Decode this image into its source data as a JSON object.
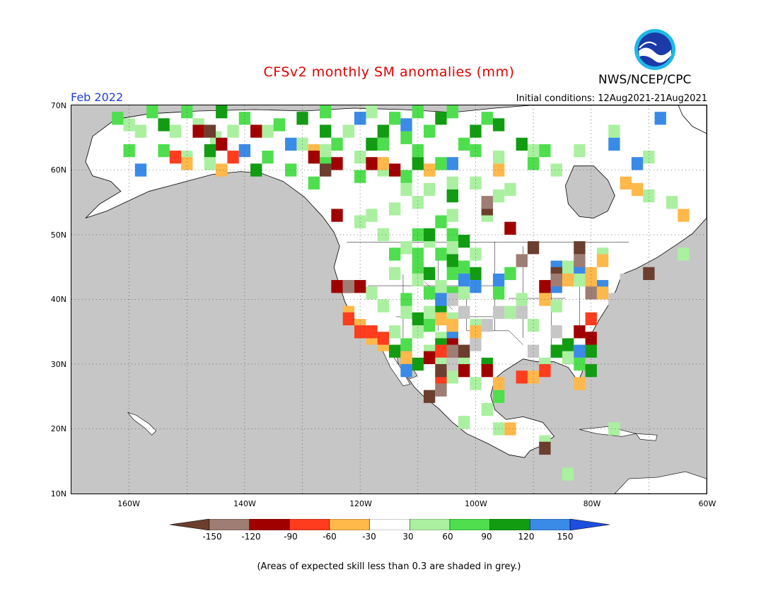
{
  "title": "CFSv2 monthly SM anomalies (mm)",
  "period": "Feb 2022",
  "initial_conditions": "Initial conditions: 12Aug2021-21Aug2021",
  "organization": "NWS/NCEP/CPC",
  "logo_text": "NOAA",
  "footnote": "(Areas of expected skill less than 0.3 are shaded in grey.)",
  "map": {
    "lon_range": [
      -170,
      -60
    ],
    "lat_range": [
      10,
      70
    ],
    "lat_ticks": [
      "70N",
      "60N",
      "50N",
      "40N",
      "30N",
      "20N",
      "10N"
    ],
    "lon_ticks": [
      "160W",
      "140W",
      "120W",
      "100W",
      "80W",
      "60W"
    ],
    "grid_dotted": true,
    "colors": {
      "ocean": "#c6c6c6",
      "low_skill": "#c6c6c6",
      "land": "#ffffff"
    }
  },
  "colorbar": {
    "labels": [
      "-150",
      "-120",
      "-90",
      "-60",
      "-30",
      "30",
      "60",
      "90",
      "120",
      "150"
    ],
    "colors": [
      "#6b3e2e",
      "#9e7d74",
      "#a00000",
      "#ff3c1e",
      "#ffb84a",
      "#ffffff",
      "#aaf0a0",
      "#4ede4e",
      "#129c12",
      "#3a8ae8",
      "#1e4ee0"
    ]
  },
  "cells": {
    "green_light": [
      [
        -160,
        67
      ],
      [
        -158,
        66
      ],
      [
        -152,
        66
      ],
      [
        -148,
        67
      ],
      [
        -145,
        65
      ],
      [
        -142,
        66
      ],
      [
        -136,
        66
      ],
      [
        -130,
        64
      ],
      [
        -126,
        63
      ],
      [
        -120,
        62
      ],
      [
        -116,
        60
      ],
      [
        -112,
        57
      ],
      [
        -108,
        57
      ],
      [
        -104,
        58
      ],
      [
        -100,
        58
      ],
      [
        -96,
        56
      ],
      [
        -110,
        55
      ],
      [
        -114,
        54
      ],
      [
        -118,
        53
      ],
      [
        -104,
        53
      ],
      [
        -98,
        53
      ],
      [
        -94,
        57
      ],
      [
        -116,
        50
      ],
      [
        -112,
        48
      ],
      [
        -108,
        49
      ],
      [
        -104,
        48
      ],
      [
        -100,
        47
      ],
      [
        -114,
        44
      ],
      [
        -110,
        43
      ],
      [
        -106,
        42
      ],
      [
        -102,
        41
      ],
      [
        -118,
        41
      ],
      [
        -116,
        39
      ],
      [
        -112,
        38
      ],
      [
        -108,
        38
      ],
      [
        -104,
        37
      ],
      [
        -100,
        36
      ],
      [
        -114,
        35
      ],
      [
        -110,
        35
      ],
      [
        -106,
        34
      ],
      [
        -102,
        31
      ],
      [
        -106,
        30
      ],
      [
        -108,
        32
      ],
      [
        -104,
        28
      ],
      [
        -100,
        27
      ],
      [
        -98,
        23
      ],
      [
        -102,
        21
      ],
      [
        -96,
        20
      ],
      [
        -92,
        40
      ],
      [
        -88,
        41
      ],
      [
        -86,
        39
      ],
      [
        -90,
        36
      ],
      [
        -94,
        38
      ],
      [
        -88,
        30
      ],
      [
        -84,
        31
      ],
      [
        -80,
        34
      ],
      [
        -82,
        43
      ],
      [
        -84,
        45
      ],
      [
        -78,
        47
      ],
      [
        -70,
        56
      ],
      [
        -66,
        55
      ],
      [
        -82,
        63
      ],
      [
        -86,
        60
      ],
      [
        -76,
        66
      ],
      [
        -70,
        62
      ],
      [
        -64,
        47
      ],
      [
        -150,
        62
      ],
      [
        -146,
        61
      ],
      [
        -120,
        52
      ],
      [
        -108,
        60
      ],
      [
        -96,
        62
      ],
      [
        -90,
        63
      ],
      [
        -122,
        66
      ],
      [
        -118,
        69
      ],
      [
        -88,
        18
      ],
      [
        -84,
        13
      ],
      [
        -76,
        20
      ]
    ],
    "green": [
      [
        -162,
        68
      ],
      [
        -156,
        69
      ],
      [
        -150,
        69
      ],
      [
        -140,
        68
      ],
      [
        -134,
        67
      ],
      [
        -126,
        69
      ],
      [
        -120,
        68
      ],
      [
        -114,
        68
      ],
      [
        -108,
        66
      ],
      [
        -102,
        64
      ],
      [
        -110,
        63
      ],
      [
        -106,
        61
      ],
      [
        -100,
        63
      ],
      [
        -126,
        61
      ],
      [
        -120,
        59
      ],
      [
        -112,
        59
      ],
      [
        -106,
        52
      ],
      [
        -110,
        50
      ],
      [
        -104,
        50
      ],
      [
        -114,
        47
      ],
      [
        -106,
        47
      ],
      [
        -110,
        45
      ],
      [
        -102,
        45
      ],
      [
        -108,
        41
      ],
      [
        -104,
        41
      ],
      [
        -112,
        40
      ],
      [
        -108,
        36
      ],
      [
        -104,
        35
      ],
      [
        -112,
        33
      ],
      [
        -108,
        31
      ],
      [
        -106,
        27
      ],
      [
        -96,
        25
      ],
      [
        -86,
        32
      ],
      [
        -82,
        30
      ],
      [
        -96,
        41
      ],
      [
        -94,
        44
      ],
      [
        -104,
        44
      ],
      [
        -110,
        47
      ],
      [
        -88,
        63
      ],
      [
        -90,
        61
      ],
      [
        -112,
        65
      ],
      [
        -116,
        64
      ],
      [
        -160,
        63
      ],
      [
        -154,
        63
      ],
      [
        -136,
        62
      ],
      [
        -132,
        60
      ],
      [
        -128,
        58
      ],
      [
        -104,
        69
      ],
      [
        -98,
        68
      ],
      [
        -124,
        64
      ],
      [
        -110,
        69
      ]
    ],
    "green_dark": [
      [
        -154,
        67
      ],
      [
        -144,
        69
      ],
      [
        -130,
        68
      ],
      [
        -116,
        66
      ],
      [
        -106,
        68
      ],
      [
        -100,
        66
      ],
      [
        -110,
        61
      ],
      [
        -104,
        56
      ],
      [
        -108,
        50
      ],
      [
        -102,
        49
      ],
      [
        -104,
        46
      ],
      [
        -108,
        44
      ],
      [
        -106,
        39
      ],
      [
        -110,
        37
      ],
      [
        -114,
        32
      ],
      [
        -106,
        33
      ],
      [
        -98,
        30
      ],
      [
        -84,
        33
      ],
      [
        -80,
        32
      ],
      [
        -96,
        67
      ],
      [
        -118,
        64
      ],
      [
        -138,
        60
      ],
      [
        -146,
        63
      ],
      [
        -126,
        66
      ],
      [
        -92,
        64
      ],
      [
        -86,
        32
      ],
      [
        -110,
        30
      ],
      [
        -100,
        44
      ],
      [
        -80,
        29
      ]
    ],
    "blue": [
      [
        -120,
        68
      ],
      [
        -112,
        67
      ],
      [
        -132,
        64
      ],
      [
        -140,
        63
      ],
      [
        -158,
        60
      ],
      [
        -104,
        61
      ],
      [
        -102,
        43
      ],
      [
        -96,
        43
      ],
      [
        -86,
        45
      ],
      [
        -82,
        45
      ],
      [
        -106,
        40
      ],
      [
        -104,
        35
      ],
      [
        -112,
        31
      ],
      [
        -82,
        32
      ],
      [
        -78,
        42
      ],
      [
        -72,
        61
      ],
      [
        -68,
        68
      ],
      [
        -76,
        64
      ],
      [
        -112,
        29
      ],
      [
        -100,
        42
      ],
      [
        -86,
        42
      ]
    ],
    "orange": [
      [
        -150,
        61
      ],
      [
        -144,
        60
      ],
      [
        -128,
        63
      ],
      [
        -116,
        61
      ],
      [
        -108,
        60
      ],
      [
        -96,
        60
      ],
      [
        -122,
        38
      ],
      [
        -120,
        36
      ],
      [
        -118,
        34
      ],
      [
        -116,
        33
      ],
      [
        -112,
        31
      ],
      [
        -106,
        37
      ],
      [
        -104,
        36
      ],
      [
        -84,
        43
      ],
      [
        -80,
        42
      ],
      [
        -78,
        41
      ],
      [
        -100,
        35
      ],
      [
        -104,
        30
      ],
      [
        -96,
        27
      ],
      [
        -82,
        27
      ],
      [
        -74,
        58
      ],
      [
        -72,
        57
      ],
      [
        -64,
        53
      ],
      [
        -80,
        44
      ],
      [
        -94,
        20
      ],
      [
        -90,
        28
      ],
      [
        -88,
        40
      ],
      [
        -78,
        46
      ]
    ],
    "red_orange": [
      [
        -152,
        62
      ],
      [
        -142,
        62
      ],
      [
        -120,
        35
      ],
      [
        -118,
        35
      ],
      [
        -116,
        34
      ],
      [
        -106,
        32
      ],
      [
        -104,
        31
      ],
      [
        -80,
        37
      ],
      [
        -92,
        28
      ],
      [
        -106,
        28
      ],
      [
        -88,
        29
      ],
      [
        -122,
        37
      ]
    ],
    "red_dark": [
      [
        -148,
        66
      ],
      [
        -138,
        66
      ],
      [
        -128,
        62
      ],
      [
        -124,
        61
      ],
      [
        -118,
        61
      ],
      [
        -114,
        60
      ],
      [
        -124,
        53
      ],
      [
        -124,
        42
      ],
      [
        -120,
        42
      ],
      [
        -104,
        33
      ],
      [
        -102,
        29
      ],
      [
        -82,
        35
      ],
      [
        -80,
        34
      ],
      [
        -94,
        51
      ],
      [
        -88,
        42
      ],
      [
        -108,
        31
      ],
      [
        -98,
        29
      ],
      [
        -144,
        64
      ]
    ],
    "brown": [
      [
        -146,
        66
      ],
      [
        -126,
        60
      ],
      [
        -98,
        54
      ],
      [
        -90,
        48
      ],
      [
        -86,
        44
      ],
      [
        -82,
        48
      ],
      [
        -70,
        44
      ],
      [
        -106,
        29
      ],
      [
        -102,
        32
      ],
      [
        -108,
        25
      ],
      [
        -88,
        17
      ],
      [
        -122,
        42
      ]
    ],
    "brown_light": [
      [
        -104,
        32
      ],
      [
        -106,
        26
      ],
      [
        -82,
        46
      ],
      [
        -80,
        41
      ],
      [
        -92,
        46
      ],
      [
        -86,
        43
      ],
      [
        -122,
        42
      ],
      [
        -98,
        55
      ]
    ],
    "grey_over_land": [
      [
        -104,
        40
      ],
      [
        -102,
        38
      ],
      [
        -96,
        38
      ],
      [
        -92,
        38
      ],
      [
        -104,
        30
      ],
      [
        -90,
        32
      ],
      [
        -86,
        35
      ],
      [
        -76,
        40
      ],
      [
        -74,
        43
      ],
      [
        -88,
        26
      ],
      [
        -82,
        13
      ],
      [
        -86,
        15
      ],
      [
        -100,
        33
      ],
      [
        -98,
        36
      ]
    ]
  },
  "map_labels": {
    "lat_ticks": [
      "70N",
      "60N",
      "50N",
      "40N",
      "30N",
      "20N",
      "10N"
    ],
    "lon_ticks": [
      "160W",
      "140W",
      "120W",
      "100W",
      "80W",
      "60W"
    ]
  }
}
